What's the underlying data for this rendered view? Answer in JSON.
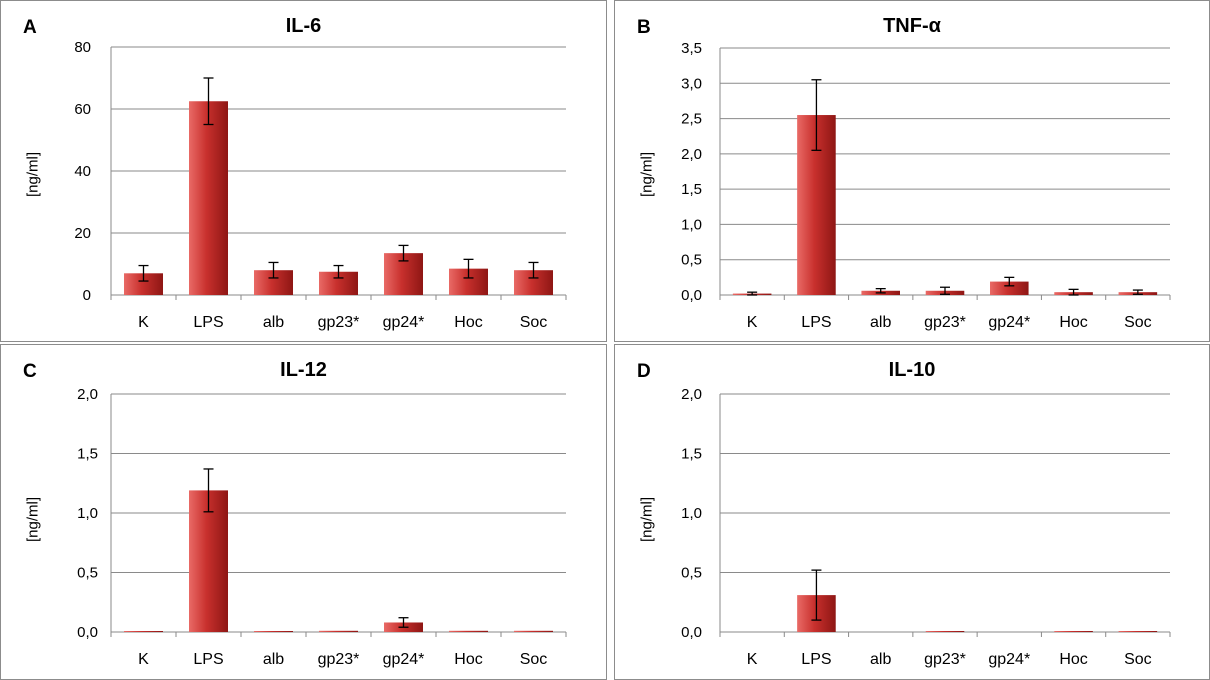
{
  "chart_data": [
    {
      "panel": "A",
      "type": "bar",
      "title": "IL-6",
      "ylabel": "[ng/ml]",
      "categories": [
        "K",
        "LPS",
        "alb",
        "gp23*",
        "gp24*",
        "Hoc",
        "Soc"
      ],
      "values": [
        7.0,
        62.5,
        8.0,
        7.5,
        13.5,
        8.5,
        8.0
      ],
      "errors": [
        2.5,
        7.5,
        2.5,
        2.0,
        2.5,
        3.0,
        2.5
      ],
      "ylim": [
        0,
        80
      ],
      "yticks": [
        0,
        20,
        40,
        60,
        80
      ],
      "ytick_labels": [
        "0",
        "20",
        "40",
        "60",
        "80"
      ],
      "grid": true,
      "legend": "none"
    },
    {
      "panel": "B",
      "type": "bar",
      "title": "TNF-α",
      "ylabel": "[ng/ml]",
      "categories": [
        "K",
        "LPS",
        "alb",
        "gp23*",
        "gp24*",
        "Hoc",
        "Soc"
      ],
      "values": [
        0.02,
        2.55,
        0.06,
        0.06,
        0.19,
        0.04,
        0.04
      ],
      "errors": [
        0.02,
        0.5,
        0.03,
        0.05,
        0.06,
        0.04,
        0.03
      ],
      "ylim": [
        0,
        3.5
      ],
      "yticks": [
        0,
        0.5,
        1.0,
        1.5,
        2.0,
        2.5,
        3.0,
        3.5
      ],
      "ytick_labels": [
        "0,0",
        "0,5",
        "1,0",
        "1,5",
        "2,0",
        "2,5",
        "3,0",
        "3,5"
      ],
      "grid": true,
      "legend": "none"
    },
    {
      "panel": "C",
      "type": "bar",
      "title": "IL-12",
      "ylabel": "[ng/ml]",
      "categories": [
        "K",
        "LPS",
        "alb",
        "gp23*",
        "gp24*",
        "Hoc",
        "Soc"
      ],
      "values": [
        0.005,
        1.19,
        0.005,
        0.01,
        0.08,
        0.01,
        0.01
      ],
      "errors": [
        0.0,
        0.18,
        0.0,
        0.0,
        0.04,
        0.0,
        0.0
      ],
      "ylim": [
        0,
        2.0
      ],
      "yticks": [
        0,
        0.5,
        1.0,
        1.5,
        2.0
      ],
      "ytick_labels": [
        "0,0",
        "0,5",
        "1,0",
        "1,5",
        "2,0"
      ],
      "grid": true,
      "legend": "none"
    },
    {
      "panel": "D",
      "type": "bar",
      "title": "IL-10",
      "ylabel": "[ng/ml]",
      "categories": [
        "K",
        "LPS",
        "alb",
        "gp23*",
        "gp24*",
        "Hoc",
        "Soc"
      ],
      "values": [
        0,
        0.31,
        0,
        0.005,
        0,
        0.005,
        0.005
      ],
      "errors": [
        0,
        0.21,
        0,
        0,
        0,
        0,
        0
      ],
      "ylim": [
        0,
        2.0
      ],
      "yticks": [
        0,
        0.5,
        1.0,
        1.5,
        2.0
      ],
      "ytick_labels": [
        "0,0",
        "0,5",
        "1,0",
        "1,5",
        "2,0"
      ],
      "grid": true,
      "legend": "none"
    }
  ],
  "colors": {
    "bar_light": "#e96a66",
    "bar_mid": "#c8302d",
    "bar_dark": "#8e1614",
    "grid": "#8a8a8a",
    "axis": "#8a8a8a",
    "error_bar": "#000000"
  }
}
